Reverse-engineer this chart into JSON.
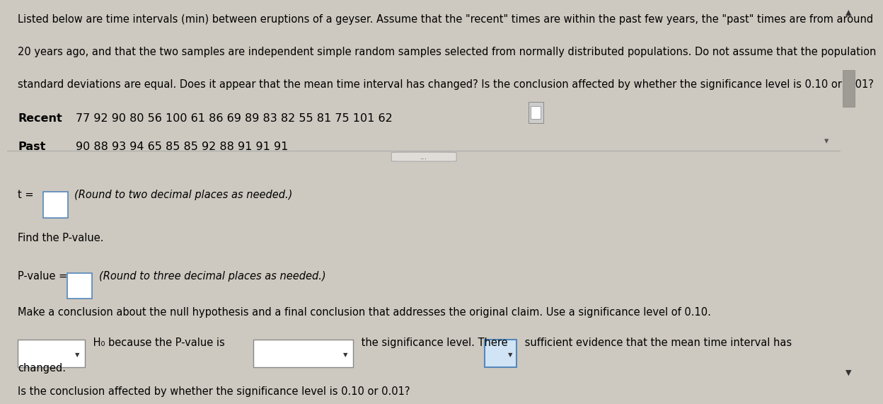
{
  "background_color": "#cdc9c0",
  "top_paragraph_line1": "Listed below are time intervals (min) between eruptions of a geyser. Assume that the \"recent\" times are within the past few years, the \"past\" times are from around",
  "top_paragraph_line2": "20 years ago, and that the two samples are independent simple random samples selected from normally distributed populations. Do not assume that the population",
  "top_paragraph_line3": "standard deviations are equal. Does it appear that the mean time interval has changed? Is the conclusion affected by whether the significance level is 0.10 or 0.01?",
  "recent_label": "Recent",
  "recent_data": "77 92 90 80 56 100 61 86 69 89 83 82 55 81 75 101 62",
  "past_label": "Past",
  "past_data": "90 88 93 94 65 85 85 92 88 91 91 91",
  "t_label": "t =",
  "t_hint": "(Round to two decimal places as needed.)",
  "pvalue_label": "Find the P-value.",
  "pvalue_eq": "P-value =",
  "pvalue_hint": "(Round to three decimal places as needed.)",
  "conclusion_text": "Make a conclusion about the null hypothesis and a final conclusion that addresses the original claim. Use a significance level of 0.10.",
  "h0_text": " H₀ because the P-value is",
  "sig_level_text": " the significance level. There",
  "sufficiency_text": " sufficient evidence that the mean time interval has",
  "changed_text": "changed.",
  "final_question": "Is the conclusion affected by whether the significance level is 0.10 or 0.01?",
  "divider_text": "...",
  "top_bg": "#dedad2",
  "bottom_bg": "#cdc9c0",
  "scrollbar_bg": "#bfbbb3",
  "scrollbar_thumb": "#9e9b95",
  "font_size_body": 10.5,
  "font_size_data": 11.5,
  "text_color": "#000000",
  "box_color": "#ffffff",
  "box_border": "#888888",
  "box_border_blue": "#5588bb",
  "dropdown_color_blue": "#d0e4f5"
}
